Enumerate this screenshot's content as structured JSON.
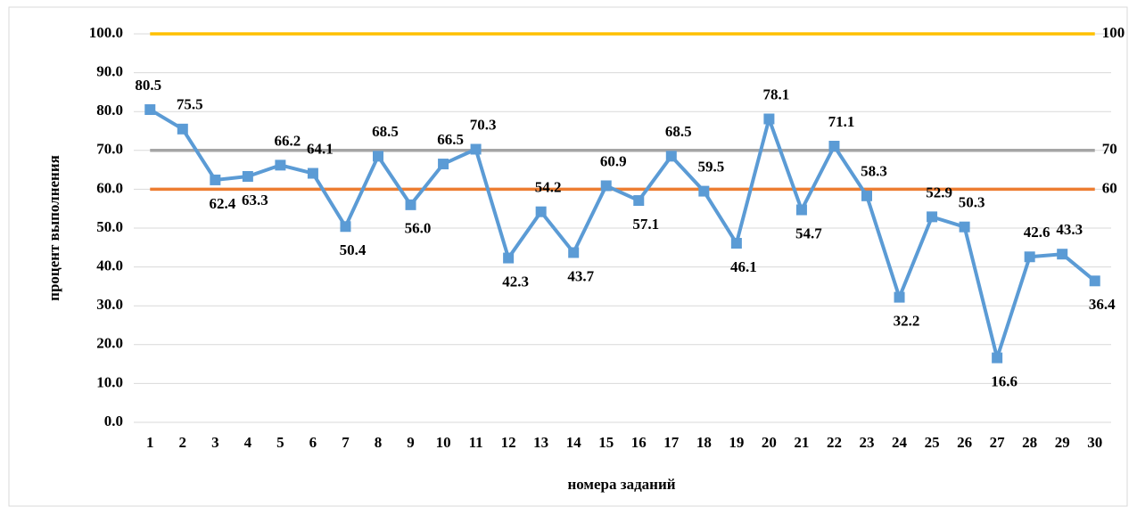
{
  "chart_data": {
    "type": "line",
    "xlabel": "номера заданий",
    "ylabel": "процент выполнения",
    "categories": [
      "1",
      "2",
      "3",
      "4",
      "5",
      "6",
      "7",
      "8",
      "9",
      "10",
      "11",
      "12",
      "13",
      "14",
      "15",
      "16",
      "17",
      "18",
      "19",
      "20",
      "21",
      "22",
      "23",
      "24",
      "25",
      "26",
      "27",
      "28",
      "29",
      "30"
    ],
    "series": [
      {
        "name": "процент выполнения",
        "color": "#5b9bd5",
        "values": [
          80.5,
          75.5,
          62.4,
          63.3,
          66.2,
          64.1,
          50.4,
          68.5,
          56.0,
          66.5,
          70.3,
          42.3,
          54.2,
          43.7,
          60.9,
          57.1,
          68.5,
          59.5,
          46.1,
          78.1,
          54.7,
          71.1,
          58.3,
          32.2,
          52.9,
          50.3,
          16.6,
          42.6,
          43.3,
          36.4
        ],
        "value_labels": [
          "80.5",
          "75.5",
          "62.4",
          "63.3",
          "66.2",
          "64.1",
          "50.4",
          "68.5",
          "56.0",
          "66.5",
          "70.3",
          "42.3",
          "54.2",
          "43.7",
          "60.9",
          "57.1",
          "68.5",
          "59.5",
          "46.1",
          "78.1",
          "54.7",
          "71.1",
          "58.3",
          "32.2",
          "52.9",
          "50.3",
          "16.6",
          "42.6",
          "43.3",
          "36.4"
        ]
      }
    ],
    "reference_lines": [
      {
        "value": 100,
        "label": "100",
        "color": "#ffc000",
        "label_color": "#00b050"
      },
      {
        "value": 70,
        "label": "70",
        "color": "#a5a5a5",
        "label_color": "#00b0f0"
      },
      {
        "value": 60,
        "label": "60",
        "color": "#ed7d31",
        "label_color": "#ff0000"
      }
    ],
    "ylim": [
      0,
      100
    ],
    "yticks": [
      {
        "value": 0,
        "label": "0.0"
      },
      {
        "value": 10,
        "label": "10.0"
      },
      {
        "value": 20,
        "label": "20.0"
      },
      {
        "value": 30,
        "label": "30.0"
      },
      {
        "value": 40,
        "label": "40.0"
      },
      {
        "value": 50,
        "label": "50.0"
      },
      {
        "value": 60,
        "label": "60.0"
      },
      {
        "value": 70,
        "label": "70.0"
      },
      {
        "value": 80,
        "label": "80.0"
      },
      {
        "value": 90,
        "label": "90.0"
      },
      {
        "value": 100,
        "label": "100.0"
      }
    ],
    "grid": true
  }
}
